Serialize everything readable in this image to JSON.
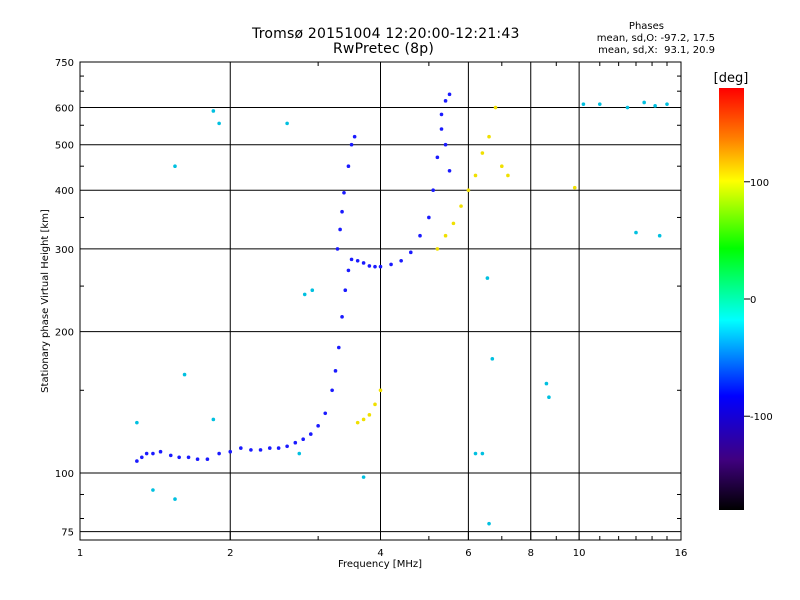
{
  "chart_data": {
    "type": "scatter",
    "title": "Tromsø 20151004 12:20:00-12:21:43",
    "subtitle": "RwPretec (8p)",
    "xlabel": "Frequency [MHz]",
    "ylabel": "Stationary phase Virtual Height [km]",
    "x_scale": "log",
    "y_scale": "log",
    "xlim": [
      1,
      16
    ],
    "ylim": [
      72,
      750
    ],
    "grid": true,
    "x_ticks": [
      1,
      2,
      4,
      6,
      8,
      10,
      16
    ],
    "x_tick_labels": [
      "1",
      "2",
      "4",
      "6",
      "8",
      "10",
      "16"
    ],
    "y_ticks": [
      75,
      100,
      200,
      300,
      400,
      500,
      600,
      750
    ],
    "y_tick_labels": [
      "75",
      "100",
      "200",
      "300",
      "400",
      "500",
      "600",
      "750"
    ],
    "stats": {
      "heading": "Phases",
      "line1": "mean, sd,O: -97.2, 17.5",
      "line2": "mean, sd,X:  93.1, 20.9"
    },
    "colorbar": {
      "label": "[deg]",
      "range": [
        -180,
        180
      ],
      "ticks": [
        100,
        0,
        -100
      ],
      "tick_labels": [
        "100",
        "0",
        "-100"
      ]
    },
    "series": [
      {
        "mode": "O",
        "phase": -100,
        "points": [
          [
            1.3,
            106
          ],
          [
            1.33,
            108
          ],
          [
            1.36,
            110
          ],
          [
            1.4,
            110
          ],
          [
            1.45,
            111
          ],
          [
            1.52,
            109
          ],
          [
            1.58,
            108
          ],
          [
            1.65,
            108
          ],
          [
            1.72,
            107
          ],
          [
            1.8,
            107
          ],
          [
            1.9,
            110
          ],
          [
            2.0,
            111
          ],
          [
            2.1,
            113
          ],
          [
            2.2,
            112
          ],
          [
            2.3,
            112
          ],
          [
            2.4,
            113
          ],
          [
            2.5,
            113
          ],
          [
            2.6,
            114
          ],
          [
            2.7,
            116
          ],
          [
            2.8,
            118
          ],
          [
            2.9,
            121
          ],
          [
            3.0,
            126
          ],
          [
            3.1,
            134
          ],
          [
            3.2,
            150
          ],
          [
            3.25,
            165
          ],
          [
            3.3,
            185
          ],
          [
            3.35,
            215
          ],
          [
            3.4,
            245
          ],
          [
            3.45,
            270
          ],
          [
            3.5,
            285
          ],
          [
            3.6,
            283
          ],
          [
            3.7,
            280
          ],
          [
            3.8,
            276
          ],
          [
            3.9,
            275
          ],
          [
            4.0,
            275
          ],
          [
            4.2,
            278
          ],
          [
            4.4,
            283
          ],
          [
            4.6,
            295
          ],
          [
            4.8,
            320
          ],
          [
            5.0,
            350
          ],
          [
            5.1,
            400
          ],
          [
            5.2,
            470
          ],
          [
            5.3,
            540
          ],
          [
            5.4,
            620
          ],
          [
            5.5,
            640
          ],
          [
            3.28,
            300
          ],
          [
            3.32,
            330
          ],
          [
            3.35,
            360
          ],
          [
            3.38,
            395
          ],
          [
            3.45,
            450
          ],
          [
            3.5,
            500
          ],
          [
            3.55,
            520
          ],
          [
            5.3,
            580
          ],
          [
            5.4,
            500
          ],
          [
            5.5,
            440
          ]
        ]
      },
      {
        "mode": "X",
        "phase": 110,
        "points": [
          [
            3.6,
            128
          ],
          [
            3.7,
            130
          ],
          [
            3.8,
            133
          ],
          [
            3.9,
            140
          ],
          [
            4.0,
            150
          ],
          [
            5.2,
            300
          ],
          [
            5.4,
            320
          ],
          [
            5.6,
            340
          ],
          [
            5.8,
            370
          ],
          [
            6.0,
            400
          ],
          [
            6.2,
            430
          ],
          [
            6.4,
            480
          ],
          [
            6.6,
            520
          ],
          [
            6.8,
            600
          ],
          [
            7.0,
            450
          ],
          [
            7.2,
            430
          ],
          [
            9.8,
            405
          ]
        ]
      },
      {
        "mode": "isolated",
        "phase": -20,
        "points": [
          [
            1.85,
            590
          ],
          [
            2.6,
            555
          ],
          [
            1.55,
            450
          ],
          [
            1.9,
            555
          ],
          [
            13.0,
            325
          ],
          [
            14.5,
            320
          ],
          [
            10.2,
            610
          ],
          [
            11.0,
            610
          ],
          [
            12.5,
            600
          ],
          [
            13.5,
            615
          ],
          [
            14.2,
            605
          ],
          [
            15.0,
            610
          ],
          [
            6.2,
            110
          ],
          [
            6.4,
            110
          ],
          [
            6.6,
            78
          ],
          [
            6.7,
            175
          ],
          [
            6.55,
            260
          ],
          [
            8.6,
            155
          ],
          [
            8.7,
            145
          ],
          [
            3.7,
            98
          ],
          [
            1.4,
            92
          ],
          [
            1.55,
            88
          ],
          [
            1.3,
            128
          ],
          [
            1.62,
            162
          ],
          [
            1.85,
            130
          ],
          [
            2.75,
            110
          ],
          [
            2.82,
            240
          ],
          [
            2.92,
            245
          ]
        ]
      }
    ]
  }
}
